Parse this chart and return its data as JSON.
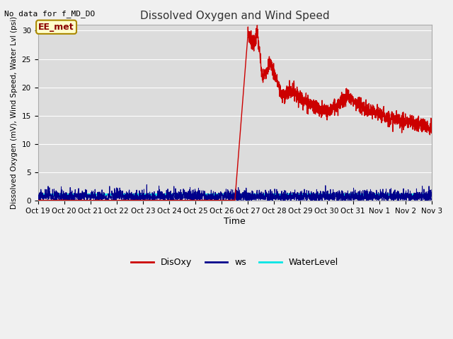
{
  "title": "Dissolved Oxygen and Wind Speed",
  "top_left_text": "No data for f_MD_DO",
  "ylabel": "Dissolved Oxygen (mV), Wind Speed, Water Lvl (psi)",
  "xlabel": "Time",
  "ylim": [
    0,
    31
  ],
  "yticks": [
    0,
    5,
    10,
    15,
    20,
    25,
    30
  ],
  "xtick_labels": [
    "Oct 19",
    "Oct 20",
    "Oct 21",
    "Oct 22",
    "Oct 23",
    "Oct 24",
    "Oct 25",
    "Oct 26",
    "Oct 27",
    "Oct 28",
    "Oct 29",
    "Oct 30",
    "Oct 31",
    "Nov 1",
    "Nov 2",
    "Nov 3"
  ],
  "bg_color": "#dcdcdc",
  "fig_bg_color": "#f0f0f0",
  "legend_entries": [
    "DisOxy",
    "ws",
    "WaterLevel"
  ],
  "legend_colors": [
    "#cc0000",
    "#00008b",
    "#00e5e5"
  ],
  "annotation_box_text": "EE_met",
  "annotation_box_color": "#ffffcc",
  "annotation_box_edge_color": "#aa8800",
  "annotation_text_color": "#8b0000"
}
